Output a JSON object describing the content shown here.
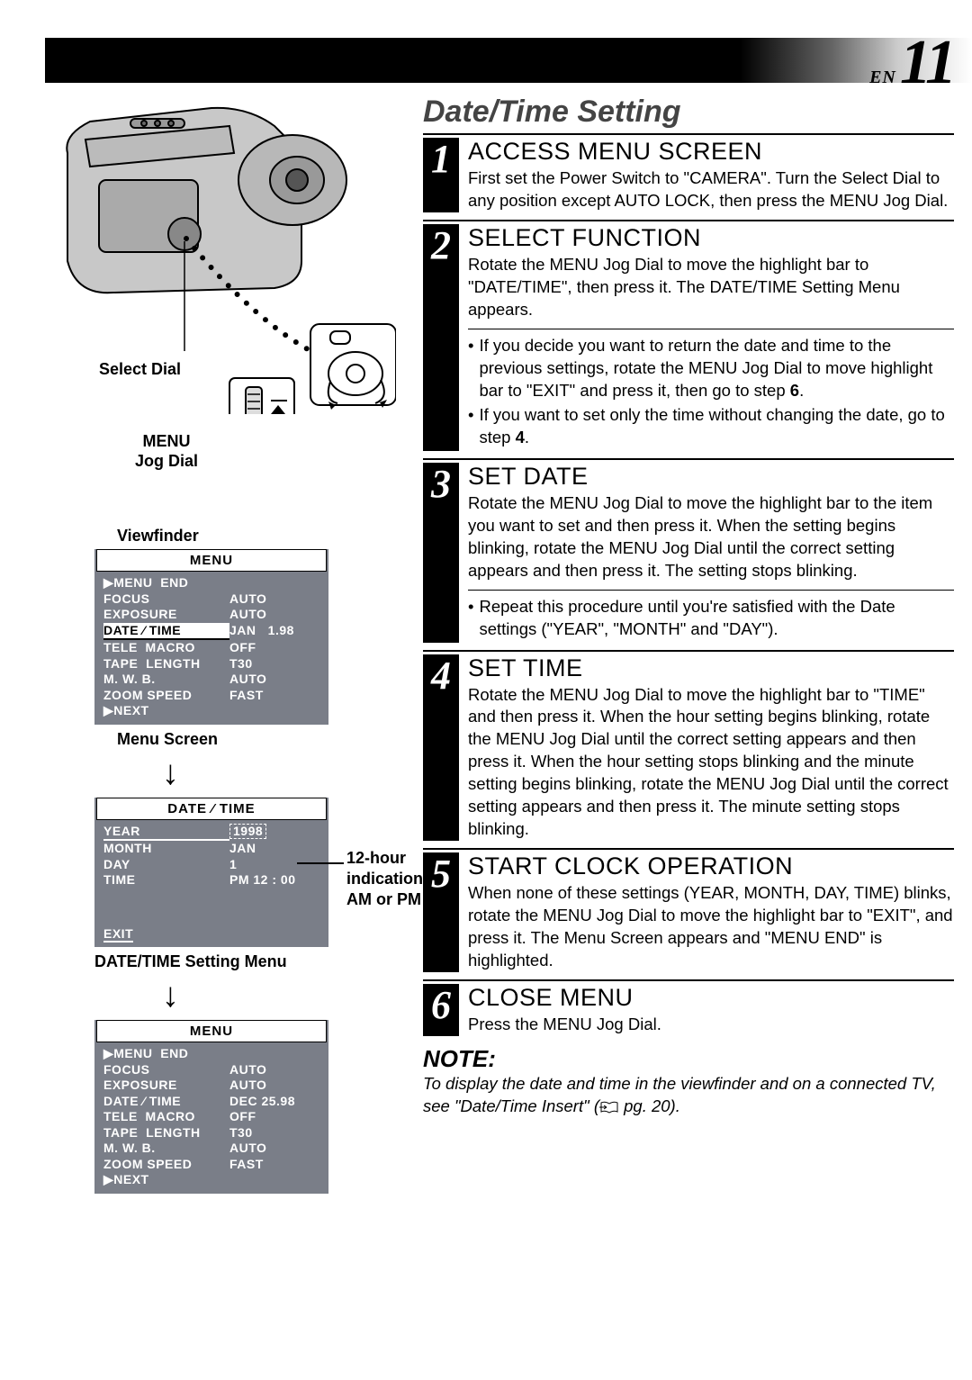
{
  "page": {
    "label_en": "EN",
    "number": "11"
  },
  "camera": {
    "select_dial": "Select Dial",
    "jog_dial_l1": "MENU",
    "jog_dial_l2": "Jog Dial"
  },
  "viewfinder_label": "Viewfinder",
  "menu1": {
    "title": "MENU",
    "caption": "Menu Screen",
    "rows": [
      {
        "l": "▶MENU  END",
        "r": "",
        "sel": false
      },
      {
        "l": "FOCUS",
        "r": "AUTO",
        "sel": false
      },
      {
        "l": "EXPOSURE",
        "r": "AUTO",
        "sel": false
      },
      {
        "l": "DATE ⁄ TIME",
        "r": "JAN   1.98",
        "sel": true
      },
      {
        "l": "TELE  MACRO",
        "r": "OFF",
        "sel": false
      },
      {
        "l": "TAPE  LENGTH",
        "r": "T30",
        "sel": false
      },
      {
        "l": "M. W. B.",
        "r": "AUTO",
        "sel": false
      },
      {
        "l": "ZOOM SPEED",
        "r": "FAST",
        "sel": false
      },
      {
        "l": "▶NEXT",
        "r": "",
        "sel": false
      }
    ]
  },
  "menu2": {
    "title": "DATE ⁄ TIME",
    "caption": "DATE/TIME Setting Menu",
    "rows": [
      {
        "l": "YEAR",
        "r": "1998",
        "sel": true,
        "dashed": true,
        "underline_l": true
      },
      {
        "l": "MONTH",
        "r": "JAN",
        "sel": false
      },
      {
        "l": "DAY",
        "r": "1",
        "sel": false
      },
      {
        "l": "TIME",
        "r": "PM 12 : 00",
        "sel": false
      }
    ],
    "exit": "EXIT",
    "side_note_l1": "12-hour",
    "side_note_l2": "indication with",
    "side_note_l3": "AM or PM"
  },
  "menu3": {
    "title": "MENU",
    "rows": [
      {
        "l": "▶MENU  END",
        "r": "",
        "sel": false
      },
      {
        "l": "FOCUS",
        "r": "AUTO",
        "sel": false
      },
      {
        "l": "EXPOSURE",
        "r": "AUTO",
        "sel": false
      },
      {
        "l": "DATE ⁄ TIME",
        "r": "DEC 25.98",
        "sel": false
      },
      {
        "l": "TELE  MACRO",
        "r": "OFF",
        "sel": false
      },
      {
        "l": "TAPE  LENGTH",
        "r": "T30",
        "sel": false
      },
      {
        "l": "M. W. B.",
        "r": "AUTO",
        "sel": false
      },
      {
        "l": "ZOOM SPEED",
        "r": "FAST",
        "sel": false
      },
      {
        "l": "▶NEXT",
        "r": "",
        "sel": false
      }
    ]
  },
  "section_title": "Date/Time Setting",
  "steps": [
    {
      "num": "1",
      "heading": "ACCESS MENU SCREEN",
      "text": "First set the Power Switch to \"CAMERA\". Turn the Select Dial to any position except AUTO LOCK, then press the MENU Jog Dial."
    },
    {
      "num": "2",
      "heading": "SELECT FUNCTION",
      "text": "Rotate the MENU Jog Dial to move the highlight bar to \"DATE/TIME\", then press it. The DATE/TIME Setting Menu appears.",
      "bullets": [
        "If you decide you want to return the date and time to the previous settings, rotate the MENU Jog Dial to move highlight bar to \"EXIT\" and press it, then go to step 6.",
        "If you want to set only the time without changing the date, go to step 4."
      ]
    },
    {
      "num": "3",
      "heading": "SET DATE",
      "text": "Rotate the MENU Jog Dial to move the highlight bar to the item you want to set and then press it. When the setting begins blinking, rotate the MENU Jog Dial until the correct setting appears and then press it. The setting stops blinking.",
      "bullets": [
        "Repeat this procedure until you're satisfied with the Date settings (\"YEAR\", \"MONTH\" and \"DAY\")."
      ]
    },
    {
      "num": "4",
      "heading": "SET TIME",
      "text": "Rotate the MENU Jog Dial to move the highlight bar to \"TIME\" and then press it. When the hour setting begins blinking, rotate the MENU Jog Dial until the correct setting appears and then press it. When the hour setting stops blinking and the minute setting begins blinking, rotate the MENU Jog Dial until the correct setting appears and then press it. The minute setting stops blinking."
    },
    {
      "num": "5",
      "heading": "START CLOCK OPERATION",
      "text": "When none of these settings (YEAR, MONTH, DAY, TIME) blinks, rotate the MENU Jog Dial to move the highlight bar to \"EXIT\", and press it. The Menu Screen appears and \"MENU END\" is highlighted."
    },
    {
      "num": "6",
      "heading": "CLOSE MENU",
      "text": "Press the MENU Jog Dial."
    }
  ],
  "note": {
    "title": "NOTE:",
    "text_before": "To display the date and time in the viewfinder and on a connected TV, see \"Date/Time Insert\" (",
    "text_after": " pg. 20)."
  }
}
